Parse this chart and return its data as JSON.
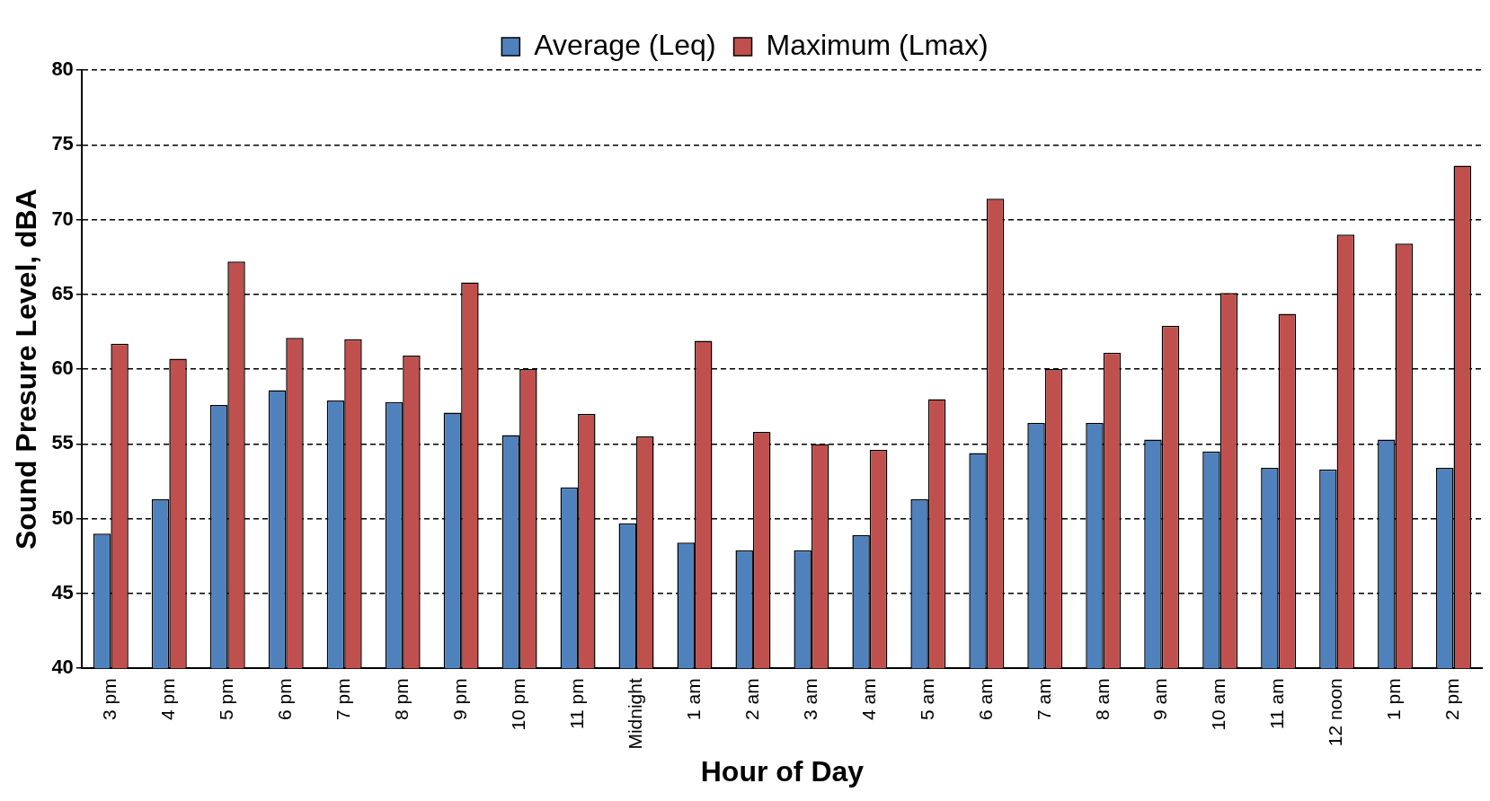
{
  "chart_data": {
    "type": "bar",
    "xlabel": "Hour of Day",
    "ylabel": "Sound Presure Level, dBA",
    "categories": [
      "3 pm",
      "4 pm",
      "5 pm",
      "6 pm",
      "7 pm",
      "8 pm",
      "9 pm",
      "10 pm",
      "11 pm",
      "Midnight",
      "1 am",
      "2 am",
      "3 am",
      "4 am",
      "5 am",
      "6 am",
      "7 am",
      "8 am",
      "9 am",
      "10 am",
      "11 am",
      "12 noon",
      "1 pm",
      "2 pm"
    ],
    "series": [
      {
        "name": "Average (Leq)",
        "color": "#4f81bd",
        "values": [
          49.0,
          51.3,
          57.6,
          58.6,
          57.9,
          57.8,
          57.1,
          55.6,
          52.1,
          49.7,
          48.4,
          47.9,
          47.9,
          48.9,
          51.3,
          54.4,
          56.4,
          56.4,
          55.3,
          54.5,
          53.4,
          53.3,
          55.3,
          53.4
        ]
      },
      {
        "name": "Maximum (Lmax)",
        "color": "#c0504d",
        "values": [
          61.7,
          60.7,
          67.2,
          62.1,
          62.0,
          60.9,
          65.8,
          60.0,
          57.0,
          55.5,
          61.9,
          55.8,
          55.0,
          54.6,
          58.0,
          71.4,
          60.0,
          61.1,
          62.9,
          65.1,
          63.7,
          69.0,
          68.4,
          73.6
        ]
      }
    ],
    "ylim": [
      40,
      80
    ],
    "yticks": [
      40,
      45,
      50,
      55,
      60,
      65,
      70,
      75,
      80
    ],
    "grid": "y",
    "legend": "top"
  }
}
